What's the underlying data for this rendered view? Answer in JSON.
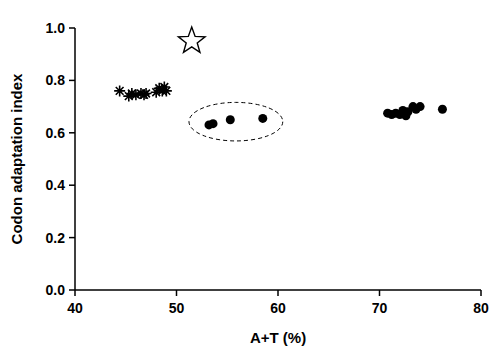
{
  "chart_data": {
    "type": "scatter",
    "x_label": "A+T (%)",
    "y_label": "Codon adaptation index",
    "xlim": [
      40,
      80
    ],
    "xticks": [
      40,
      50,
      60,
      70,
      80
    ],
    "ylim": [
      0,
      1
    ],
    "yticks": [
      {
        "value": 0,
        "label": "0.0"
      },
      {
        "value": 0.2,
        "label": "0.2"
      },
      {
        "value": 0.4,
        "label": "0.4"
      },
      {
        "value": 0.6,
        "label": "0.6"
      },
      {
        "value": 0.8,
        "label": "0.8"
      },
      {
        "value": 1,
        "label": "1.0"
      }
    ],
    "grid": false,
    "series": [
      {
        "marker": "asterisk",
        "color": "#000000",
        "x": [
          44.4,
          45.3,
          45.6,
          46.0,
          46.5,
          46.8,
          47.0,
          48.0,
          48.3,
          48.6,
          48.8,
          49.0
        ],
        "values": [
          0.76,
          0.74,
          0.75,
          0.745,
          0.75,
          0.745,
          0.75,
          0.755,
          0.77,
          0.76,
          0.775,
          0.76
        ]
      },
      {
        "marker": "circle",
        "color": "#000000",
        "x": [
          53.2,
          53.6,
          55.3,
          58.5
        ],
        "values": [
          0.63,
          0.635,
          0.65,
          0.655
        ]
      },
      {
        "marker": "circle",
        "color": "#000000",
        "x": [
          70.8,
          71.2,
          71.6,
          72.0,
          72.3,
          72.6,
          72.8,
          73.3,
          73.6,
          74.0,
          76.2
        ],
        "values": [
          0.675,
          0.67,
          0.675,
          0.67,
          0.685,
          0.665,
          0.68,
          0.7,
          0.69,
          0.7,
          0.69
        ]
      },
      {
        "marker": "star",
        "color": "#000000",
        "x": [
          51.5
        ],
        "values": [
          0.95
        ]
      }
    ]
  }
}
